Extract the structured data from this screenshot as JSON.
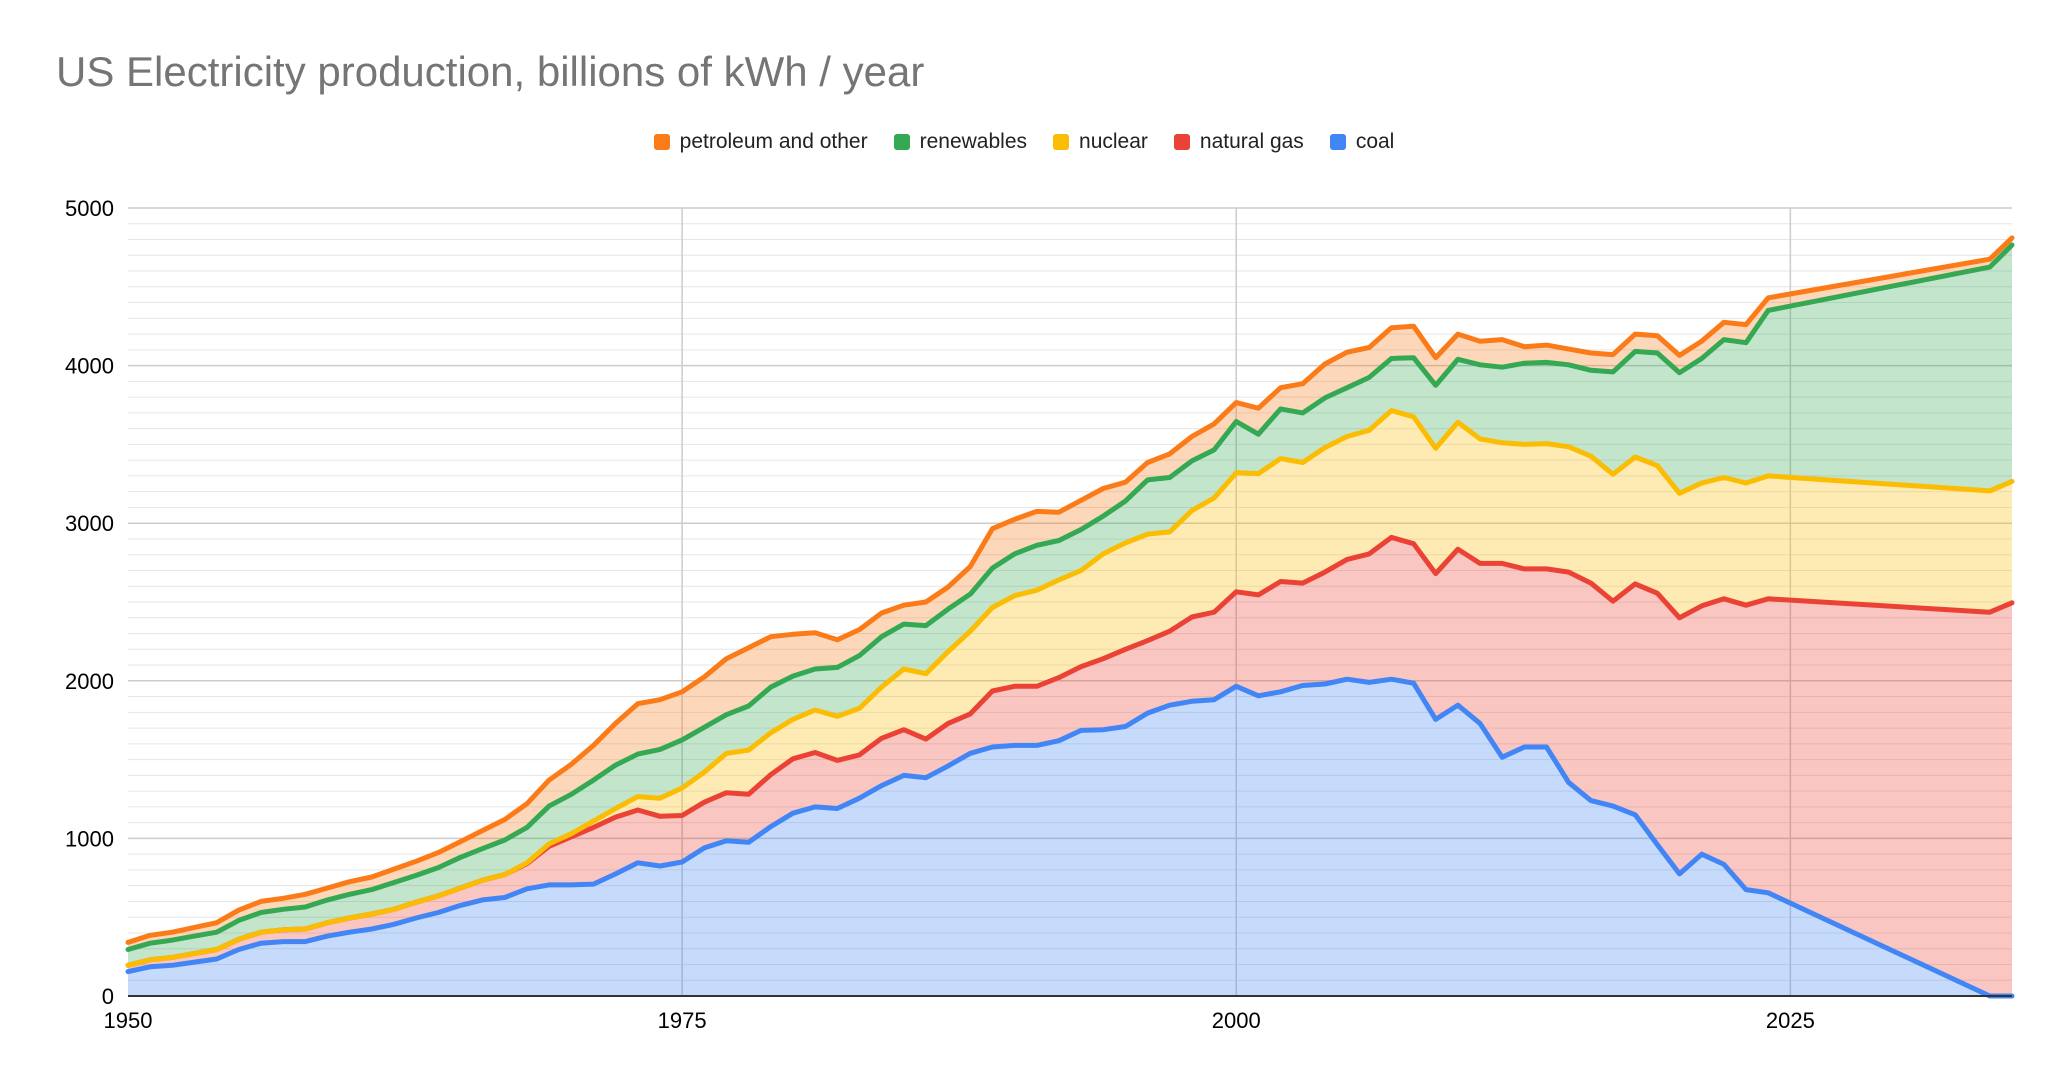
{
  "chart_data": {
    "type": "area",
    "stacked": true,
    "title": "US Electricity production, billions of kWh / year",
    "xlabel": "",
    "ylabel": "",
    "xlim": [
      1950,
      2035
    ],
    "ylim": [
      0,
      5000
    ],
    "x_ticks": [
      1950,
      1975,
      2000,
      2025
    ],
    "y_ticks": [
      0,
      1000,
      2000,
      3000,
      4000,
      5000
    ],
    "legend_position": "top",
    "grid": true,
    "legend_order": [
      "petroleum and other",
      "renewables",
      "nuclear",
      "natural gas",
      "coal"
    ],
    "x": [
      1950,
      1951,
      1952,
      1953,
      1954,
      1955,
      1956,
      1957,
      1958,
      1959,
      1960,
      1961,
      1962,
      1963,
      1964,
      1965,
      1966,
      1967,
      1968,
      1969,
      1970,
      1971,
      1972,
      1973,
      1974,
      1975,
      1976,
      1977,
      1978,
      1979,
      1980,
      1981,
      1982,
      1983,
      1984,
      1985,
      1986,
      1987,
      1988,
      1989,
      1990,
      1991,
      1992,
      1993,
      1994,
      1995,
      1996,
      1997,
      1998,
      1999,
      2000,
      2001,
      2002,
      2003,
      2004,
      2005,
      2006,
      2007,
      2008,
      2009,
      2010,
      2011,
      2012,
      2013,
      2014,
      2015,
      2016,
      2017,
      2018,
      2019,
      2020,
      2021,
      2022,
      2023,
      2024,
      2034,
      2035
    ],
    "series": [
      {
        "name": "coal",
        "color": "#4285f4",
        "values": [
          155,
          185,
          195,
          215,
          235,
          295,
          335,
          345,
          345,
          380,
          405,
          425,
          455,
          495,
          530,
          575,
          610,
          625,
          680,
          705,
          705,
          710,
          775,
          845,
          825,
          850,
          940,
          985,
          975,
          1075,
          1160,
          1200,
          1190,
          1255,
          1335,
          1400,
          1385,
          1460,
          1540,
          1580,
          1590,
          1590,
          1620,
          1685,
          1690,
          1710,
          1795,
          1845,
          1870,
          1880,
          1965,
          1905,
          1930,
          1970,
          1980,
          2010,
          1990,
          2010,
          1985,
          1755,
          1845,
          1730,
          1515,
          1580,
          1580,
          1355,
          1240,
          1205,
          1150,
          960,
          775,
          900,
          835,
          675,
          655,
          0,
          0
        ]
      },
      {
        "name": "natural gas",
        "color": "#ea4335",
        "values": [
          40,
          45,
          50,
          55,
          60,
          65,
          70,
          75,
          80,
          85,
          90,
          95,
          95,
          100,
          105,
          110,
          125,
          145,
          160,
          245,
          305,
          360,
          360,
          335,
          315,
          295,
          290,
          305,
          305,
          330,
          345,
          345,
          305,
          275,
          300,
          290,
          245,
          270,
          250,
          355,
          375,
          375,
          400,
          405,
          450,
          490,
          460,
          470,
          535,
          555,
          600,
          640,
          700,
          650,
          710,
          760,
          815,
          900,
          885,
          925,
          990,
          1015,
          1230,
          1130,
          1130,
          1335,
          1380,
          1300,
          1465,
          1595,
          1625,
          1575,
          1685,
          1805,
          1865,
          2435,
          2495
        ]
      },
      {
        "name": "nuclear",
        "color": "#fbbc04",
        "values": [
          0,
          0,
          0,
          0,
          0,
          0,
          0,
          0,
          0,
          0,
          0,
          0,
          0,
          0,
          0,
          0,
          0,
          0,
          5,
          15,
          20,
          40,
          55,
          85,
          115,
          175,
          190,
          250,
          280,
          265,
          250,
          270,
          280,
          295,
          325,
          385,
          415,
          455,
          525,
          530,
          575,
          610,
          620,
          610,
          665,
          675,
          675,
          630,
          675,
          725,
          755,
          770,
          780,
          765,
          790,
          780,
          785,
          805,
          805,
          795,
          805,
          790,
          765,
          790,
          795,
          795,
          805,
          805,
          805,
          810,
          790,
          780,
          770,
          775,
          780,
          770,
          770
        ]
      },
      {
        "name": "renewables",
        "color": "#34a853",
        "values": [
          100,
          105,
          110,
          110,
          110,
          120,
          125,
          130,
          140,
          145,
          150,
          155,
          170,
          170,
          180,
          195,
          200,
          220,
          225,
          240,
          250,
          260,
          275,
          270,
          310,
          305,
          285,
          245,
          280,
          290,
          275,
          260,
          310,
          335,
          320,
          285,
          305,
          270,
          235,
          250,
          265,
          285,
          250,
          260,
          240,
          265,
          345,
          345,
          315,
          305,
          325,
          250,
          315,
          315,
          315,
          310,
          335,
          330,
          375,
          400,
          400,
          470,
          480,
          515,
          515,
          520,
          545,
          650,
          670,
          715,
          765,
          790,
          875,
          890,
          1050,
          1420,
          1500
        ]
      },
      {
        "name": "petroleum and other",
        "color": "#fa7b17",
        "values": [
          45,
          50,
          50,
          55,
          60,
          65,
          70,
          70,
          80,
          75,
          80,
          80,
          85,
          90,
          95,
          100,
          115,
          130,
          150,
          165,
          190,
          220,
          265,
          320,
          315,
          305,
          320,
          355,
          370,
          320,
          265,
          230,
          175,
          165,
          150,
          120,
          150,
          140,
          175,
          250,
          220,
          215,
          180,
          185,
          175,
          120,
          110,
          150,
          155,
          165,
          120,
          165,
          135,
          185,
          215,
          225,
          190,
          195,
          200,
          175,
          160,
          150,
          175,
          105,
          110,
          100,
          110,
          110,
          110,
          110,
          110,
          110,
          110,
          115,
          80,
          50,
          45
        ]
      }
    ]
  }
}
